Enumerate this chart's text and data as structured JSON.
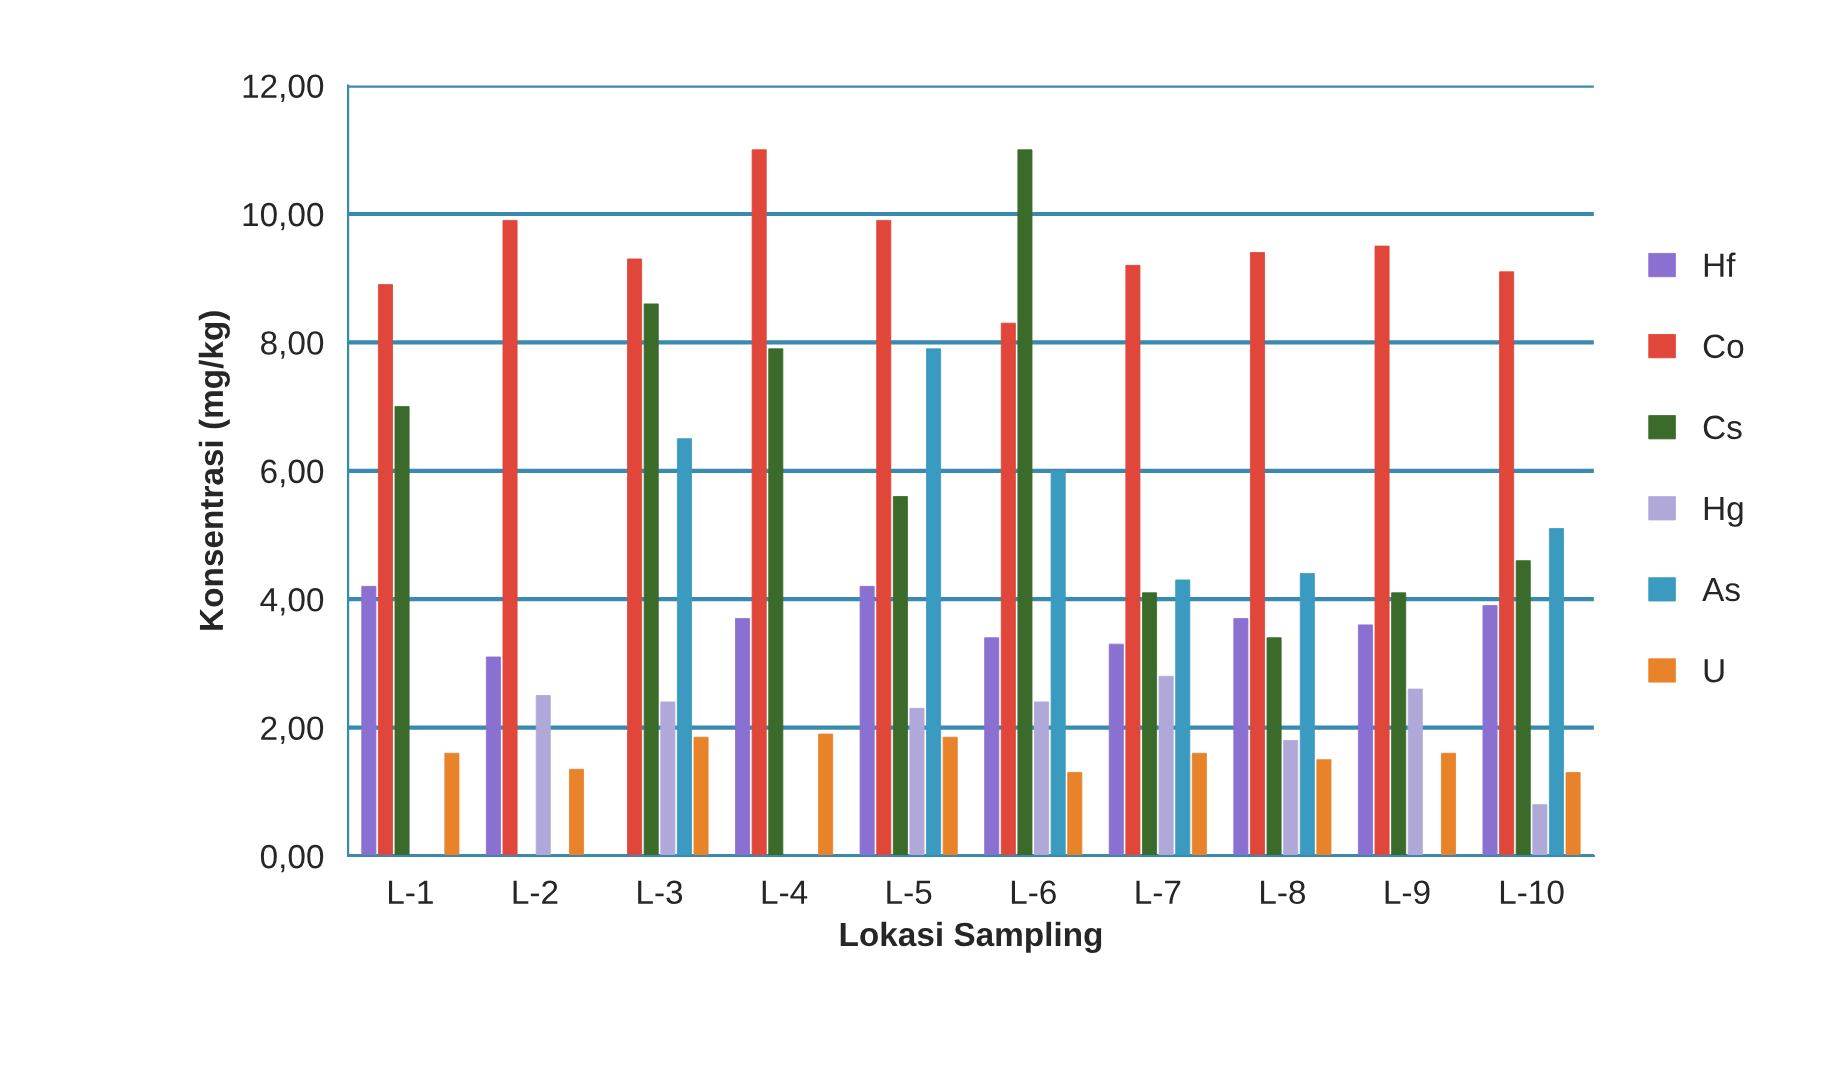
{
  "chart_data": {
    "type": "bar",
    "xlabel": "Lokasi Sampling",
    "ylabel": "Konsentrasi (mg/kg)",
    "categories": [
      "L-1",
      "L-2",
      "L-3",
      "L-4",
      "L-5",
      "L-6",
      "L-7",
      "L-8",
      "L-9",
      "L-10"
    ],
    "series": [
      {
        "name": "Hf",
        "color": "#8a70d0",
        "values": [
          4.2,
          3.1,
          null,
          3.7,
          4.2,
          3.4,
          3.3,
          3.7,
          3.6,
          3.9
        ]
      },
      {
        "name": "Co",
        "color": "#e0463a",
        "values": [
          8.9,
          9.9,
          9.3,
          11.0,
          9.9,
          8.3,
          9.2,
          9.4,
          9.5,
          9.1
        ]
      },
      {
        "name": "Cs",
        "color": "#3a6b2a",
        "values": [
          7.0,
          null,
          8.6,
          7.9,
          5.6,
          11.0,
          4.1,
          3.4,
          4.1,
          4.6
        ]
      },
      {
        "name": "Hg",
        "color": "#b0a8d8",
        "values": [
          null,
          2.5,
          2.4,
          null,
          2.3,
          2.4,
          2.8,
          1.8,
          2.6,
          0.8
        ]
      },
      {
        "name": "As",
        "color": "#3a9ac0",
        "values": [
          null,
          null,
          6.5,
          null,
          7.9,
          6.0,
          4.3,
          4.4,
          null,
          5.1
        ]
      },
      {
        "name": "U",
        "color": "#e8832a",
        "values": [
          1.6,
          1.35,
          1.85,
          1.9,
          1.85,
          1.3,
          1.6,
          1.5,
          1.6,
          1.3
        ]
      }
    ],
    "ylim": [
      0,
      12
    ],
    "yticks": [
      {
        "value": 0,
        "label": "0,00"
      },
      {
        "value": 2,
        "label": "2,00"
      },
      {
        "value": 4,
        "label": "4,00"
      },
      {
        "value": 6,
        "label": "6,00"
      },
      {
        "value": 8,
        "label": "8,00"
      },
      {
        "value": 10,
        "label": "10,00"
      },
      {
        "value": 12,
        "label": "12,00"
      }
    ],
    "grid": "y",
    "legend": "right"
  }
}
